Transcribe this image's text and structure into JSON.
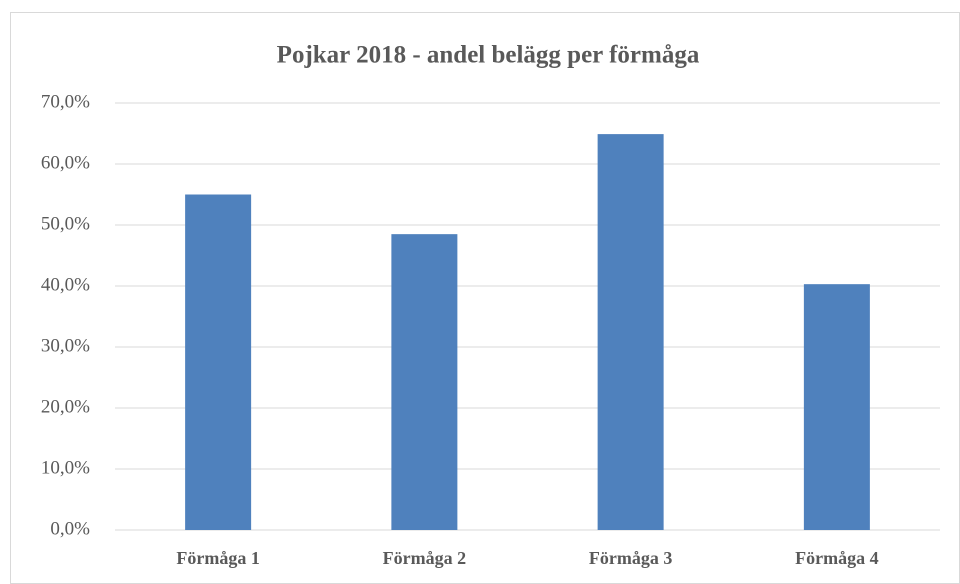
{
  "chart_data": {
    "type": "bar",
    "title": "Pojkar 2018 - andel belägg per förmåga",
    "categories": [
      "Förmåga 1",
      "Förmåga 2",
      "Förmåga 3",
      "Förmåga 4"
    ],
    "values": [
      55.0,
      48.5,
      64.9,
      40.3
    ],
    "color": "#4f81bd",
    "ylim": [
      0,
      70
    ],
    "yticks": [
      {
        "value": 0,
        "label": "0,0%"
      },
      {
        "value": 10,
        "label": "10,0%"
      },
      {
        "value": 20,
        "label": "20,0%"
      },
      {
        "value": 30,
        "label": "30,0%"
      },
      {
        "value": 40,
        "label": "40,0%"
      },
      {
        "value": 50,
        "label": "50,0%"
      },
      {
        "value": 60,
        "label": "60,0%"
      },
      {
        "value": 70,
        "label": "70,0%"
      }
    ],
    "grid": true
  }
}
